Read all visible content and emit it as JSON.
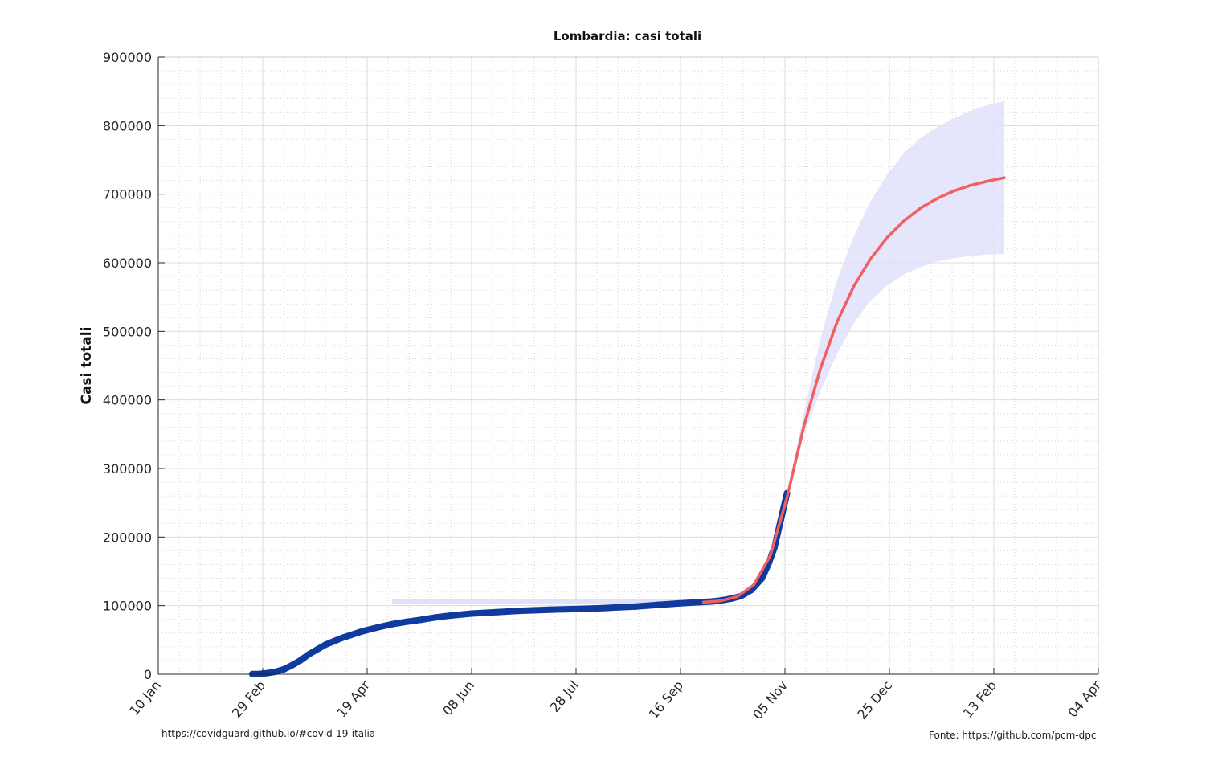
{
  "chart_data": {
    "type": "line",
    "title": "Lombardia: casi totali",
    "xlabel": "",
    "ylabel": "Casi totali",
    "x_ticks": [
      "10 Jan",
      "29 Feb",
      "19 Apr",
      "08 Jun",
      "28 Jul",
      "16 Sep",
      "05 Nov",
      "25 Dec",
      "13 Feb",
      "04 Apr"
    ],
    "x_range": [
      "2020-01-10",
      "2021-04-04"
    ],
    "ylim": [
      0,
      900000
    ],
    "y_ticks": [
      0,
      100000,
      200000,
      300000,
      400000,
      500000,
      600000,
      700000,
      800000,
      900000
    ],
    "grid": true,
    "series": [
      {
        "kind": "observed",
        "color": "#0f3a9e",
        "x": [
          "2020-02-24",
          "2020-02-27",
          "2020-03-02",
          "2020-03-06",
          "2020-03-10",
          "2020-03-14",
          "2020-03-18",
          "2020-03-22",
          "2020-03-26",
          "2020-03-30",
          "2020-04-03",
          "2020-04-07",
          "2020-04-11",
          "2020-04-15",
          "2020-04-19",
          "2020-04-25",
          "2020-05-01",
          "2020-05-08",
          "2020-05-15",
          "2020-05-22",
          "2020-05-29",
          "2020-06-08",
          "2020-06-20",
          "2020-07-01",
          "2020-07-15",
          "2020-07-28",
          "2020-08-10",
          "2020-08-25",
          "2020-09-05",
          "2020-09-16",
          "2020-09-25",
          "2020-10-01",
          "2020-10-05",
          "2020-10-10",
          "2020-10-15",
          "2020-10-20",
          "2020-10-25",
          "2020-10-28",
          "2020-10-31",
          "2020-11-03",
          "2020-11-06"
        ],
        "y": [
          200,
          400,
          1500,
          3500,
          7000,
          13000,
          20000,
          29000,
          36000,
          43000,
          48000,
          53000,
          57000,
          61000,
          64500,
          69000,
          73000,
          76500,
          79500,
          83000,
          85500,
          88500,
          90500,
          92500,
          94000,
          95000,
          96500,
          98500,
          101000,
          103500,
          105000,
          106000,
          107500,
          110000,
          114000,
          123000,
          140000,
          160000,
          185000,
          225000,
          264000
        ]
      },
      {
        "kind": "fit",
        "color": "#f06060",
        "x": [
          "2020-09-27",
          "2020-10-05",
          "2020-10-13",
          "2020-10-21",
          "2020-10-29",
          "2020-11-06",
          "2020-11-14",
          "2020-11-22",
          "2020-11-30",
          "2020-12-08",
          "2020-12-16",
          "2020-12-24",
          "2021-01-01",
          "2021-01-09",
          "2021-01-17",
          "2021-01-25",
          "2021-02-02",
          "2021-02-10",
          "2021-02-18"
        ],
        "y": [
          105000,
          107000,
          113000,
          130000,
          173000,
          258000,
          361000,
          446000,
          514000,
          566000,
          606000,
          637000,
          661000,
          680000,
          694000,
          705000,
          713000,
          719000,
          724000
        ]
      },
      {
        "kind": "band-upper",
        "color": "#e0e0fb",
        "x": [
          "2020-11-06",
          "2020-11-14",
          "2020-11-22",
          "2020-11-30",
          "2020-12-08",
          "2020-12-16",
          "2020-12-24",
          "2021-01-01",
          "2021-01-09",
          "2021-01-17",
          "2021-01-25",
          "2021-02-02",
          "2021-02-10",
          "2021-02-18"
        ],
        "y": [
          262000,
          380000,
          490000,
          575000,
          639000,
          690000,
          729000,
          760000,
          782000,
          798000,
          811000,
          822000,
          830000,
          836000
        ]
      },
      {
        "kind": "band-lower",
        "color": "#e0e0fb",
        "x": [
          "2020-11-06",
          "2020-11-14",
          "2020-11-22",
          "2020-11-30",
          "2020-12-08",
          "2020-12-16",
          "2020-12-24",
          "2021-01-01",
          "2021-01-09",
          "2021-01-17",
          "2021-01-25",
          "2021-02-02",
          "2021-02-10",
          "2021-02-18"
        ],
        "y": [
          255000,
          348000,
          413000,
          468000,
          512000,
          545000,
          567000,
          583000,
          594000,
          602000,
          607000,
          610000,
          612000,
          613000
        ]
      },
      {
        "kind": "band-early",
        "color": "#e0e0fb",
        "x": [
          "2020-05-01",
          "2020-09-16"
        ],
        "y": [
          106000,
          106000
        ]
      }
    ]
  },
  "footer": {
    "left": "https://covidguard.github.io/#covid-19-italia",
    "right": "Fonte: https://github.com/pcm-dpc"
  }
}
